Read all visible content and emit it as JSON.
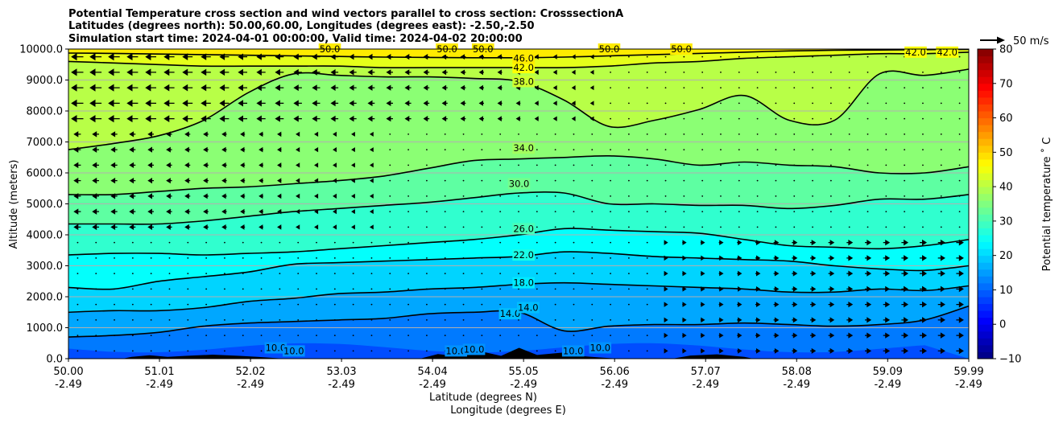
{
  "chart_data": {
    "type": "heatmap",
    "title_lines": [
      "Potential Temperature cross section and wind vectors parallel to cross section: CrosssectionA",
      "Latitudes (degrees north): 50.00,60.00, Longitudes (degrees east): -2.50,-2.50",
      "Simulation start time: 2024-04-01 00:00:00, Valid time: 2024-04-02 20:00:00"
    ],
    "xlabel_lines": [
      "Latitude (degrees N)",
      "Longitude (degrees E)"
    ],
    "ylabel": "Altitude (meters)",
    "xlim": [
      50.0,
      59.99
    ],
    "ylim": [
      0,
      10000
    ],
    "x_ticks": [
      {
        "lat": "50.00",
        "lon": "-2.49"
      },
      {
        "lat": "51.01",
        "lon": "-2.49"
      },
      {
        "lat": "52.02",
        "lon": "-2.49"
      },
      {
        "lat": "53.03",
        "lon": "-2.49"
      },
      {
        "lat": "54.04",
        "lon": "-2.49"
      },
      {
        "lat": "55.05",
        "lon": "-2.49"
      },
      {
        "lat": "56.06",
        "lon": "-2.49"
      },
      {
        "lat": "57.07",
        "lon": "-2.49"
      },
      {
        "lat": "58.08",
        "lon": "-2.49"
      },
      {
        "lat": "59.09",
        "lon": "-2.49"
      },
      {
        "lat": "59.99",
        "lon": "-2.49"
      }
    ],
    "y_ticks": [
      "0.0",
      "1000.0",
      "2000.0",
      "3000.0",
      "4000.0",
      "5000.0",
      "6000.0",
      "7000.0",
      "8000.0",
      "9000.0",
      "10000.0"
    ],
    "grid": "horizontal",
    "colorbar": {
      "label": "Potential temperature ˚ C",
      "min": -10,
      "max": 80,
      "ticks": [
        "−10",
        "0",
        "10",
        "20",
        "30",
        "40",
        "50",
        "60",
        "70",
        "80"
      ],
      "colormap": "jet"
    },
    "wind_key_label": "50 m/s",
    "contour_labels": [
      "10.0",
      "14.0",
      "18.0",
      "22.0",
      "26.0",
      "30.0",
      "34.0",
      "38.0",
      "42.0",
      "46.0",
      "50.0"
    ],
    "contours": [
      {
        "level": 14,
        "lats": [
          50.0,
          50.5,
          51.0,
          51.5,
          52.0,
          52.5,
          53.0,
          53.5,
          54.0,
          54.5,
          55.0,
          55.5,
          56.0,
          56.5,
          57.0,
          57.5,
          58.0,
          58.5,
          59.0,
          59.5,
          59.99
        ],
        "heights": [
          700,
          750,
          850,
          1050,
          1150,
          1200,
          1250,
          1300,
          1450,
          1500,
          1500,
          900,
          1050,
          1100,
          1100,
          1150,
          1100,
          1050,
          1100,
          1250,
          1700
        ]
      },
      {
        "level": 18,
        "lats": [
          50.0,
          50.5,
          51.0,
          51.5,
          52.0,
          52.5,
          53.0,
          53.5,
          54.0,
          54.5,
          55.0,
          55.5,
          56.0,
          56.5,
          57.0,
          57.5,
          58.0,
          58.5,
          59.0,
          59.5,
          59.99
        ],
        "heights": [
          1500,
          1550,
          1550,
          1650,
          1850,
          1950,
          2100,
          2150,
          2250,
          2300,
          2400,
          2450,
          2400,
          2350,
          2300,
          2250,
          2150,
          2150,
          2250,
          2200,
          2350
        ]
      },
      {
        "level": 22,
        "lats": [
          50.0,
          50.5,
          51.0,
          51.5,
          52.0,
          52.5,
          53.0,
          53.5,
          54.0,
          54.5,
          55.0,
          55.5,
          56.0,
          56.5,
          57.0,
          57.5,
          58.0,
          58.5,
          59.0,
          59.5,
          59.99
        ],
        "heights": [
          2300,
          2250,
          2500,
          2650,
          2800,
          3050,
          3100,
          3150,
          3200,
          3250,
          3300,
          3450,
          3400,
          3300,
          3250,
          3200,
          3150,
          3000,
          2900,
          2850,
          3000
        ]
      },
      {
        "level": 26,
        "lats": [
          50.0,
          50.5,
          51.0,
          51.5,
          52.0,
          52.5,
          53.0,
          53.5,
          54.0,
          54.5,
          55.0,
          55.5,
          56.0,
          56.5,
          57.0,
          57.5,
          58.0,
          58.5,
          59.0,
          59.5,
          59.99
        ],
        "heights": [
          3350,
          3400,
          3400,
          3350,
          3400,
          3450,
          3550,
          3650,
          3750,
          3850,
          4000,
          4200,
          4150,
          4100,
          4050,
          3850,
          3650,
          3600,
          3550,
          3650,
          3850
        ]
      },
      {
        "level": 30,
        "lats": [
          50.0,
          50.5,
          51.0,
          51.5,
          52.0,
          52.5,
          53.0,
          53.5,
          54.0,
          54.5,
          55.0,
          55.5,
          56.0,
          56.5,
          57.0,
          57.5,
          58.0,
          58.5,
          59.0,
          59.5,
          59.99
        ],
        "heights": [
          4350,
          4350,
          4350,
          4450,
          4600,
          4750,
          4850,
          4950,
          5050,
          5200,
          5350,
          5350,
          5000,
          5000,
          4950,
          4950,
          4850,
          4950,
          5150,
          5150,
          5300
        ]
      },
      {
        "level": 34,
        "lats": [
          50.0,
          50.5,
          51.0,
          51.5,
          52.0,
          52.5,
          53.0,
          53.5,
          54.0,
          54.5,
          55.0,
          55.5,
          56.0,
          56.5,
          57.0,
          57.5,
          58.0,
          58.5,
          59.0,
          59.5,
          59.99
        ],
        "heights": [
          5300,
          5300,
          5400,
          5500,
          5550,
          5650,
          5750,
          5900,
          6150,
          6400,
          6450,
          6500,
          6550,
          6450,
          6250,
          6350,
          6250,
          6200,
          6000,
          6000,
          6200
        ]
      },
      {
        "level": 38,
        "lats": [
          50.0,
          50.5,
          51.0,
          51.5,
          52.0,
          52.5,
          53.0,
          53.5,
          54.0,
          54.5,
          55.0,
          55.5,
          56.0,
          56.5,
          57.0,
          57.5,
          58.0,
          58.5,
          59.0,
          59.5,
          59.99
        ],
        "heights": [
          6750,
          6950,
          7200,
          7700,
          8600,
          9200,
          9150,
          9100,
          9100,
          9050,
          8950,
          8350,
          7500,
          7700,
          8050,
          8500,
          7700,
          7700,
          9200,
          9150,
          9350
        ]
      },
      {
        "level": 42,
        "lats": [
          50.0,
          50.5,
          51.0,
          51.5,
          52.0,
          52.5,
          53.0,
          53.5,
          54.0,
          54.5,
          55.0,
          55.5,
          56.0,
          56.5,
          57.0,
          57.5,
          58.0,
          58.5,
          59.0,
          59.5,
          59.99
        ],
        "heights": [
          9600,
          9550,
          9500,
          9450,
          9450,
          9450,
          9450,
          9400,
          9400,
          9400,
          9400,
          9400,
          9450,
          9550,
          9600,
          9700,
          9750,
          9800,
          9850,
          9850,
          9900
        ]
      },
      {
        "level": 46,
        "lats": [
          50.0,
          50.5,
          51.0,
          51.5,
          52.0,
          52.5,
          53.0,
          53.5,
          54.0,
          54.5,
          55.0,
          55.5,
          56.0,
          56.5,
          57.0,
          57.5,
          58.0,
          58.5,
          59.0,
          59.5,
          59.99
        ],
        "heights": [
          9870,
          9860,
          9840,
          9820,
          9800,
          9780,
          9760,
          9740,
          9730,
          9720,
          9720,
          9740,
          9780,
          9820,
          9860,
          9900,
          9940,
          9960,
          9970,
          9980,
          9990
        ]
      }
    ],
    "contour_label_positions": [
      {
        "text": "14.0",
        "lat": 54.9,
        "height": 1450
      },
      {
        "text": "14.0",
        "lat": 55.1,
        "height": 1650
      },
      {
        "text": "18.0",
        "lat": 55.05,
        "height": 2450
      },
      {
        "text": "22.0",
        "lat": 55.05,
        "height": 3350
      },
      {
        "text": "26.0",
        "lat": 55.05,
        "height": 4200
      },
      {
        "text": "30.0",
        "lat": 55.0,
        "height": 5650
      },
      {
        "text": "34.0",
        "lat": 55.05,
        "height": 6800
      },
      {
        "text": "38.0",
        "lat": 55.05,
        "height": 8950
      },
      {
        "text": "42.0",
        "lat": 55.05,
        "height": 9400
      },
      {
        "text": "46.0",
        "lat": 55.05,
        "height": 9700
      },
      {
        "text": "50.0",
        "lat": 52.9,
        "height": 10000
      },
      {
        "text": "50.0",
        "lat": 54.2,
        "height": 10000
      },
      {
        "text": "50.0",
        "lat": 54.6,
        "height": 10000
      },
      {
        "text": "50.0",
        "lat": 56.0,
        "height": 10000
      },
      {
        "text": "50.0",
        "lat": 56.8,
        "height": 10000
      },
      {
        "text": "42.0",
        "lat": 59.4,
        "height": 9900
      },
      {
        "text": "42.0",
        "lat": 59.75,
        "height": 9900
      },
      {
        "text": "10.0",
        "lat": 52.3,
        "height": 350
      },
      {
        "text": "10.0",
        "lat": 52.5,
        "height": 250
      },
      {
        "text": "10.0",
        "lat": 54.3,
        "height": 250
      },
      {
        "text": "10.0",
        "lat": 54.5,
        "height": 300
      },
      {
        "text": "10.0",
        "lat": 55.6,
        "height": 250
      },
      {
        "text": "10.0",
        "lat": 55.9,
        "height": 350
      }
    ]
  }
}
